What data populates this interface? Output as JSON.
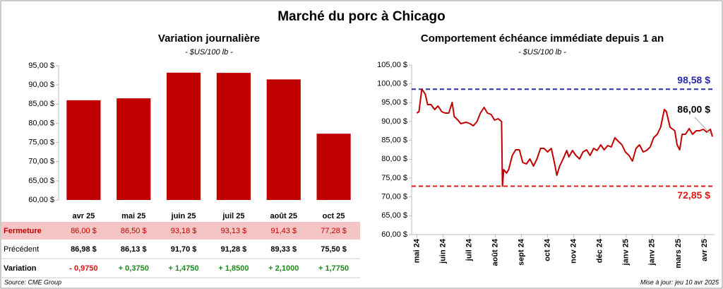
{
  "title": "Marché du porc à Chicago",
  "source": "Source: CME Group",
  "updated": "Mise à jour: jeu 10 avr 2025",
  "chart_data": [
    {
      "type": "bar",
      "title": "Variation journalière",
      "subtitle": "- $US/100 lb -",
      "categories": [
        "avr 25",
        "mai 25",
        "juin 25",
        "juil 25",
        "août 25",
        "oct 25"
      ],
      "series": [
        {
          "name": "Fermeture",
          "color": "#c00000",
          "values": [
            86.0,
            86.5,
            93.18,
            93.13,
            91.43,
            77.28
          ],
          "value_labels": [
            "86,00  $",
            "86,50  $",
            "93,18  $",
            "93,13  $",
            "91,43  $",
            "77,28  $"
          ]
        }
      ],
      "ylim": [
        60,
        95
      ],
      "yticks": [
        {
          "value": 60,
          "label": "60,00 $"
        },
        {
          "value": 65,
          "label": "65,00 $"
        },
        {
          "value": 70,
          "label": "70,00 $"
        },
        {
          "value": 75,
          "label": "75,00 $"
        },
        {
          "value": 80,
          "label": "80,00 $"
        },
        {
          "value": 85,
          "label": "85,00 $"
        },
        {
          "value": 90,
          "label": "90,00 $"
        },
        {
          "value": 95,
          "label": "95,00 $"
        }
      ],
      "grid": false
    },
    {
      "type": "line",
      "title": "Comportement échéance immédiate depuis 1 an",
      "subtitle": "- $US/100 lb -",
      "color": "#c00000",
      "x": [
        0,
        0.08,
        0.19,
        0.32,
        0.41,
        0.54,
        0.68,
        0.81,
        0.95,
        1.08,
        1.22,
        1.35,
        1.43,
        1.57,
        1.68,
        1.89,
        2.03,
        2.16,
        2.3,
        2.43,
        2.57,
        2.7,
        2.84,
        2.97,
        3.11,
        3.24,
        3.27,
        3.32,
        3.43,
        3.51,
        3.65,
        3.78,
        3.92,
        4.05,
        4.19,
        4.32,
        4.46,
        4.59,
        4.73,
        4.86,
        5.0,
        5.14,
        5.27,
        5.35,
        5.46,
        5.59,
        5.73,
        5.81,
        5.95,
        6.08,
        6.22,
        6.35,
        6.49,
        6.62,
        6.76,
        6.89,
        7.03,
        7.16,
        7.3,
        7.43,
        7.57,
        7.7,
        7.84,
        7.97,
        8.11,
        8.24,
        8.38,
        8.51,
        8.65,
        8.78,
        8.92,
        9.05,
        9.19,
        9.32,
        9.46,
        9.54,
        9.68,
        9.86,
        9.95,
        10.05,
        10.14,
        10.27,
        10.41,
        10.54,
        10.68,
        10.81,
        10.95,
        11.08,
        11.22,
        11.3
      ],
      "values": [
        92.25,
        92.63,
        98.58,
        97.31,
        94.5,
        94.5,
        93.19,
        94.13,
        92.63,
        92.25,
        92.25,
        95.06,
        91.31,
        90.38,
        89.44,
        89.81,
        89.44,
        88.88,
        90.0,
        92.25,
        93.75,
        92.25,
        91.88,
        90.38,
        90.75,
        90.0,
        72.85,
        77.25,
        76.31,
        77.25,
        81.0,
        82.5,
        82.5,
        79.13,
        78.75,
        80.06,
        78.19,
        80.06,
        82.88,
        82.88,
        81.94,
        82.88,
        78.75,
        75.75,
        78.19,
        80.06,
        82.31,
        80.63,
        82.31,
        81.0,
        80.06,
        81.94,
        82.5,
        81.0,
        82.88,
        82.31,
        83.81,
        82.5,
        83.63,
        83.25,
        85.69,
        84.75,
        83.81,
        81.94,
        81.0,
        79.5,
        82.88,
        83.81,
        81.94,
        82.31,
        83.25,
        85.69,
        86.63,
        88.5,
        93.19,
        92.63,
        88.5,
        87.56,
        83.81,
        82.5,
        86.63,
        86.63,
        88.13,
        86.63,
        87.56,
        87.56,
        87.94,
        87.19,
        87.94,
        86.0
      ],
      "xlim": [
        -0.2,
        11.38
      ],
      "xticks": [
        {
          "value": 0,
          "label": "mai 24"
        },
        {
          "value": 1,
          "label": "juin 24"
        },
        {
          "value": 2,
          "label": "juil 24"
        },
        {
          "value": 3,
          "label": "août 24"
        },
        {
          "value": 4,
          "label": "sept 24"
        },
        {
          "value": 5,
          "label": "oct 24"
        },
        {
          "value": 6,
          "label": "nov 24"
        },
        {
          "value": 7,
          "label": "déc 24"
        },
        {
          "value": 8,
          "label": "janv 25"
        },
        {
          "value": 9,
          "label": "janv 25"
        },
        {
          "value": 10,
          "label": "mars 25"
        },
        {
          "value": 11,
          "label": "avr 25"
        }
      ],
      "ylim": [
        60,
        105
      ],
      "yticks": [
        {
          "value": 60,
          "label": "60,00 $"
        },
        {
          "value": 65,
          "label": "65,00 $"
        },
        {
          "value": 70,
          "label": "70,00 $"
        },
        {
          "value": 75,
          "label": "75,00 $"
        },
        {
          "value": 80,
          "label": "80,00 $"
        },
        {
          "value": 85,
          "label": "85,00 $"
        },
        {
          "value": 90,
          "label": "90,00 $"
        },
        {
          "value": 95,
          "label": "95,00 $"
        },
        {
          "value": 100,
          "label": "100,00 $"
        },
        {
          "value": 105,
          "label": "105,00 $"
        }
      ],
      "reference_lines": [
        {
          "value": 98.58,
          "label": "98,58 $",
          "color": "#2a2aa8"
        },
        {
          "value": 72.85,
          "label": "72,85 $",
          "color": "#e01818"
        }
      ],
      "annotations": [
        {
          "text": "86,00 $",
          "value": 86.0
        }
      ],
      "grid": false
    }
  ],
  "table": {
    "rows": [
      [
        "Précédent",
        "86,98 $",
        "86,13 $",
        "91,70 $",
        "91,28 $",
        "89,33 $",
        "75,50 $"
      ],
      [
        "Variation",
        "- 0,9750",
        "+ 0,3750",
        "+ 1,4750",
        "+ 1,8500",
        "+ 2,1000",
        "+ 1,7750"
      ]
    ]
  }
}
